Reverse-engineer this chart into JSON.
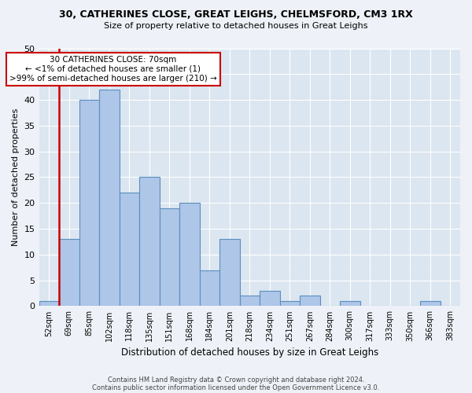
{
  "title1": "30, CATHERINES CLOSE, GREAT LEIGHS, CHELMSFORD, CM3 1RX",
  "title2": "Size of property relative to detached houses in Great Leighs",
  "xlabel": "Distribution of detached houses by size in Great Leighs",
  "ylabel": "Number of detached properties",
  "categories": [
    "52sqm",
    "69sqm",
    "85sqm",
    "102sqm",
    "118sqm",
    "135sqm",
    "151sqm",
    "168sqm",
    "184sqm",
    "201sqm",
    "218sqm",
    "234sqm",
    "251sqm",
    "267sqm",
    "284sqm",
    "300sqm",
    "317sqm",
    "333sqm",
    "350sqm",
    "366sqm",
    "383sqm"
  ],
  "values": [
    1,
    13,
    40,
    42,
    22,
    25,
    19,
    20,
    7,
    13,
    2,
    3,
    1,
    2,
    0,
    1,
    0,
    0,
    0,
    1,
    0
  ],
  "bar_color": "#aec6e8",
  "bar_edge_color": "#5a8fc0",
  "highlight_color": "#cc0000",
  "annotation_text": "30 CATHERINES CLOSE: 70sqm\n← <1% of detached houses are smaller (1)\n>99% of semi-detached houses are larger (210) →",
  "annotation_box_color": "#ffffff",
  "annotation_box_edge_color": "#cc0000",
  "ylim": [
    0,
    50
  ],
  "yticks": [
    0,
    5,
    10,
    15,
    20,
    25,
    30,
    35,
    40,
    45,
    50
  ],
  "footer1": "Contains HM Land Registry data © Crown copyright and database right 2024.",
  "footer2": "Contains public sector information licensed under the Open Government Licence v3.0.",
  "bg_color": "#eef2f8",
  "plot_bg_color": "#dce6f0"
}
